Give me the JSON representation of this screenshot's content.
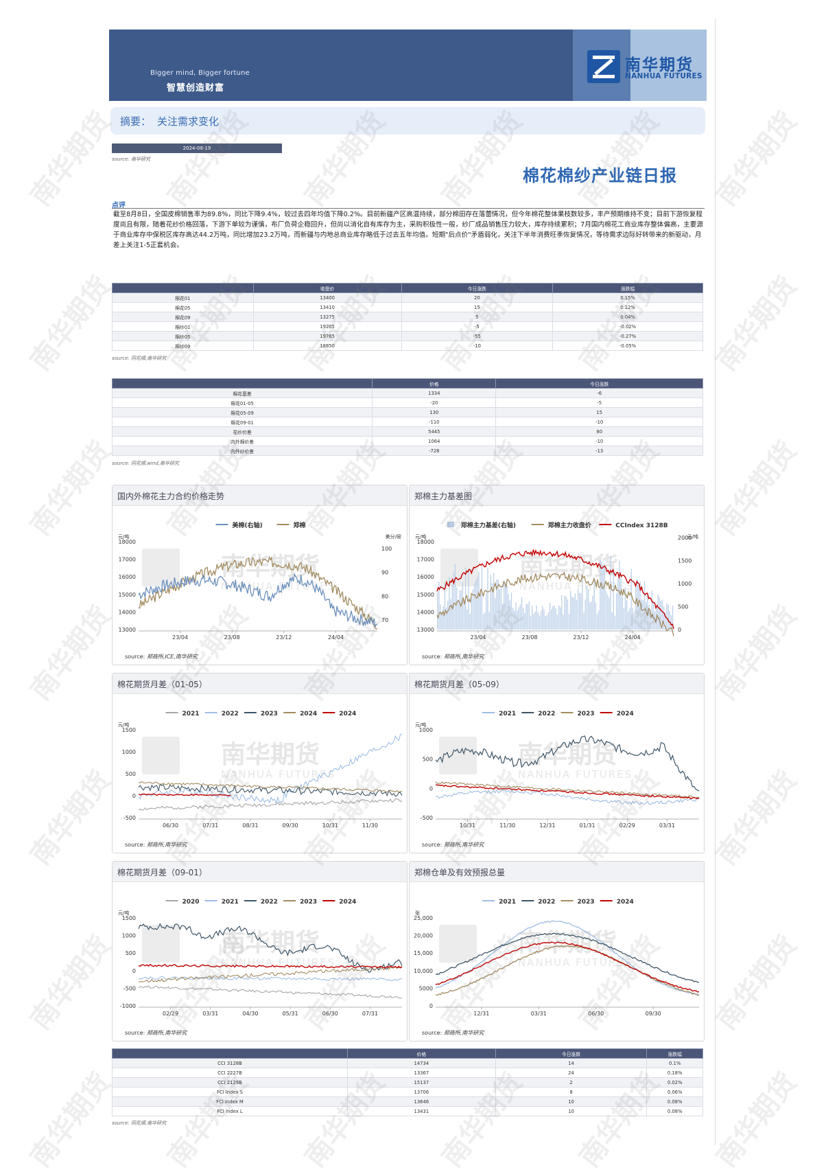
{
  "banner": {
    "slogan_en": "Bigger mind, Bigger fortune",
    "slogan_cn": "智慧创造财富",
    "logo_cn": "南华期货",
    "logo_en": "NANHUA FUTURES"
  },
  "summary": {
    "label": "摘要：",
    "text": "关注需求变化"
  },
  "date": "2024-08-19",
  "source_nh": "source:  南华研究",
  "title": "棉花棉纱产业链日报",
  "comment": {
    "label": "点评",
    "text": "截至8月8日，全国皮棉销售率为89.8%，同比下降9.4%，较过去四年均值下降0.2%。目前新疆产区高温持续，部分棉田存在落蕾情况，但今年棉花整体果枝数较多，丰产预期维持不变；目前下游恢复程度尚且有限，随着花纱价格回落，下游下单较为谨慎，布厂负荷企稳回升，但尚以消化自有库存为主，采购积极性一般，纱厂成品销售压力较大，库存持续累积；7月国内棉花工商业库存整体偏高，主要源于商业库存中保税区库存高达44.2万吨，同比增加23.2万吨，而新疆与内地总商业库存略低于过去五年均值。短期\"后点价\"矛盾弱化，关注下半年消费旺季恢复情况，等待需求边际好转带来的新驱动，月差上关注1-5正套机会。"
  },
  "table1": {
    "headers": [
      "",
      "收盘价",
      "今日涨跌",
      "涨跌幅"
    ],
    "rows": [
      [
        "棉花01",
        "13400",
        "20",
        "0.15%"
      ],
      [
        "棉花05",
        "13410",
        "15",
        "0.12%"
      ],
      [
        "棉花09",
        "13275",
        "5",
        "0.04%"
      ],
      [
        "棉纱01",
        "19205",
        "-5",
        "-0.02%"
      ],
      [
        "棉纱05",
        "19765",
        "-55",
        "-0.27%"
      ],
      [
        "棉纱09",
        "18850",
        "-10",
        "-0.05%"
      ]
    ],
    "source": "source:  同花顺,南华研究"
  },
  "table2": {
    "headers": [
      "",
      "价格",
      "今日涨跌"
    ],
    "rows": [
      [
        "棉花基差",
        "1334",
        "-6"
      ],
      [
        "棉花01-05",
        "-20",
        "-5"
      ],
      [
        "棉花05-09",
        "130",
        "15"
      ],
      [
        "棉花09-01",
        "-110",
        "-10"
      ],
      [
        "花纱价差",
        "5445",
        "80"
      ],
      [
        "内外棉价差",
        "1064",
        "-10"
      ],
      [
        "内外纱价差",
        "-728",
        "-13"
      ]
    ],
    "source": "source:  同花顺,wind,南华研究"
  },
  "table3": {
    "headers": [
      "",
      "价格",
      "今日涨跌",
      "涨跌幅"
    ],
    "rows": [
      [
        "CCI 3128B",
        "14734",
        "14",
        "0.1%"
      ],
      [
        "CCI 2227B",
        "13367",
        "24",
        "0.18%"
      ],
      [
        "CCI 2129B",
        "15137",
        "2",
        "0.02%"
      ],
      [
        "FCI Index S",
        "13706",
        "8",
        "0.06%"
      ],
      [
        "FCI Index M",
        "13646",
        "10",
        "0.08%"
      ],
      [
        "FCI Index L",
        "13431",
        "10",
        "0.08%"
      ]
    ],
    "source": "source:  同花顺,南华研究"
  },
  "watermark": "南华期货",
  "chart_watermark": {
    "cn": "南华期货",
    "en": "NANHUA FUTURES"
  },
  "chart_data": [
    {
      "id": "c1",
      "type": "line",
      "title": "国内外棉花主力合约价格走势",
      "source": "source:  郑商所,ICE,南华研究",
      "ylabel": "元/吨",
      "y2label": "美分/磅",
      "ylim": [
        13000,
        18000
      ],
      "yticks": [
        "18000",
        "17000",
        "16000",
        "15000",
        "14000",
        "13000"
      ],
      "y2lim": [
        65,
        105
      ],
      "y2ticks": [
        "100",
        "90",
        "80",
        "70"
      ],
      "xticks": [
        "23/04",
        "23/08",
        "23/12",
        "24/04"
      ],
      "series": [
        {
          "name": "美棉(右轴)",
          "color": "#6b8fbd",
          "axis": "right"
        },
        {
          "name": "郑棉",
          "color": "#a28a5f",
          "axis": "left"
        }
      ]
    },
    {
      "id": "c2",
      "type": "line",
      "title": "郑棉主力基差图",
      "source": "source:  郑商所,南华研究",
      "ylabel": "元/吨",
      "y2label": "元/吨",
      "ylim": [
        13000,
        18000
      ],
      "yticks": [
        "18000",
        "17000",
        "16000",
        "15000",
        "14000",
        "13000"
      ],
      "y2lim": [
        0,
        2000
      ],
      "y2ticks": [
        "2000",
        "1500",
        "1000",
        "500",
        "0"
      ],
      "xticks": [
        "23/04",
        "23/08",
        "23/12",
        "24/04"
      ],
      "series": [
        {
          "name": "郑棉主力基差(右轴)",
          "color": "#b8cde6",
          "axis": "right"
        },
        {
          "name": "郑棉主力收盘价",
          "color": "#a28a5f",
          "axis": "left"
        },
        {
          "name": "CCIndex 3128B",
          "color": "#c00000",
          "axis": "left"
        }
      ]
    },
    {
      "id": "c3",
      "type": "line",
      "title": "棉花期货月差（01-05）",
      "source": "source:  郑商所,南华研究",
      "ylabel": "元/吨",
      "ylim": [
        -500,
        1500
      ],
      "yticks": [
        "1500",
        "1000",
        "500",
        "0",
        "-500"
      ],
      "xticks": [
        "06/30",
        "07/31",
        "08/31",
        "09/30",
        "10/31",
        "11/30"
      ],
      "series": [
        {
          "name": "2021",
          "color": "#a6a6a6"
        },
        {
          "name": "2022",
          "color": "#9dbde3"
        },
        {
          "name": "2023",
          "color": "#3e5566"
        },
        {
          "name": "2024",
          "color": "#a28a5f"
        },
        {
          "name": "2024",
          "color": "#c00000"
        }
      ]
    },
    {
      "id": "c4",
      "type": "line",
      "title": "棉花期货月差（05-09）",
      "source": "source:  郑商所,南华研究",
      "ylabel": "元/吨",
      "ylim": [
        -500,
        1000
      ],
      "yticks": [
        "1000",
        "500",
        "0",
        "-500"
      ],
      "xticks": [
        "10/31",
        "11/30",
        "12/31",
        "01/31",
        "02/29",
        "03/31"
      ],
      "series": [
        {
          "name": "2021",
          "color": "#9dbde3"
        },
        {
          "name": "2022",
          "color": "#3e5566"
        },
        {
          "name": "2023",
          "color": "#a28a5f"
        },
        {
          "name": "2024",
          "color": "#c00000"
        }
      ]
    },
    {
      "id": "c5",
      "type": "line",
      "title": "棉花期货月差（09-01）",
      "source": "source:  郑商所,南华研究",
      "ylabel": "元/吨",
      "ylim": [
        -1000,
        1500
      ],
      "yticks": [
        "1500",
        "1000",
        "500",
        "0",
        "-500",
        "-1000"
      ],
      "xticks": [
        "02/29",
        "03/31",
        "04/30",
        "05/31",
        "06/30",
        "07/31"
      ],
      "series": [
        {
          "name": "2020",
          "color": "#a6a6a6"
        },
        {
          "name": "2021",
          "color": "#9dbde3"
        },
        {
          "name": "2022",
          "color": "#3e5566"
        },
        {
          "name": "2023",
          "color": "#a28a5f"
        },
        {
          "name": "2024",
          "color": "#c00000"
        }
      ]
    },
    {
      "id": "c6",
      "type": "line",
      "title": "郑棉仓单及有效预报总量",
      "source": "source:  郑商所,南华研究",
      "ylabel": "张",
      "ylim": [
        0,
        25000
      ],
      "yticks": [
        "25,000",
        "20,000",
        "15,000",
        "10,000",
        "5000",
        "0"
      ],
      "xticks": [
        "12/31",
        "03/31",
        "06/30",
        "09/30"
      ],
      "series": [
        {
          "name": "2021",
          "color": "#9dbde3"
        },
        {
          "name": "2022",
          "color": "#3e5566"
        },
        {
          "name": "2023",
          "color": "#a28a5f"
        },
        {
          "name": "2024",
          "color": "#c00000"
        }
      ]
    }
  ]
}
